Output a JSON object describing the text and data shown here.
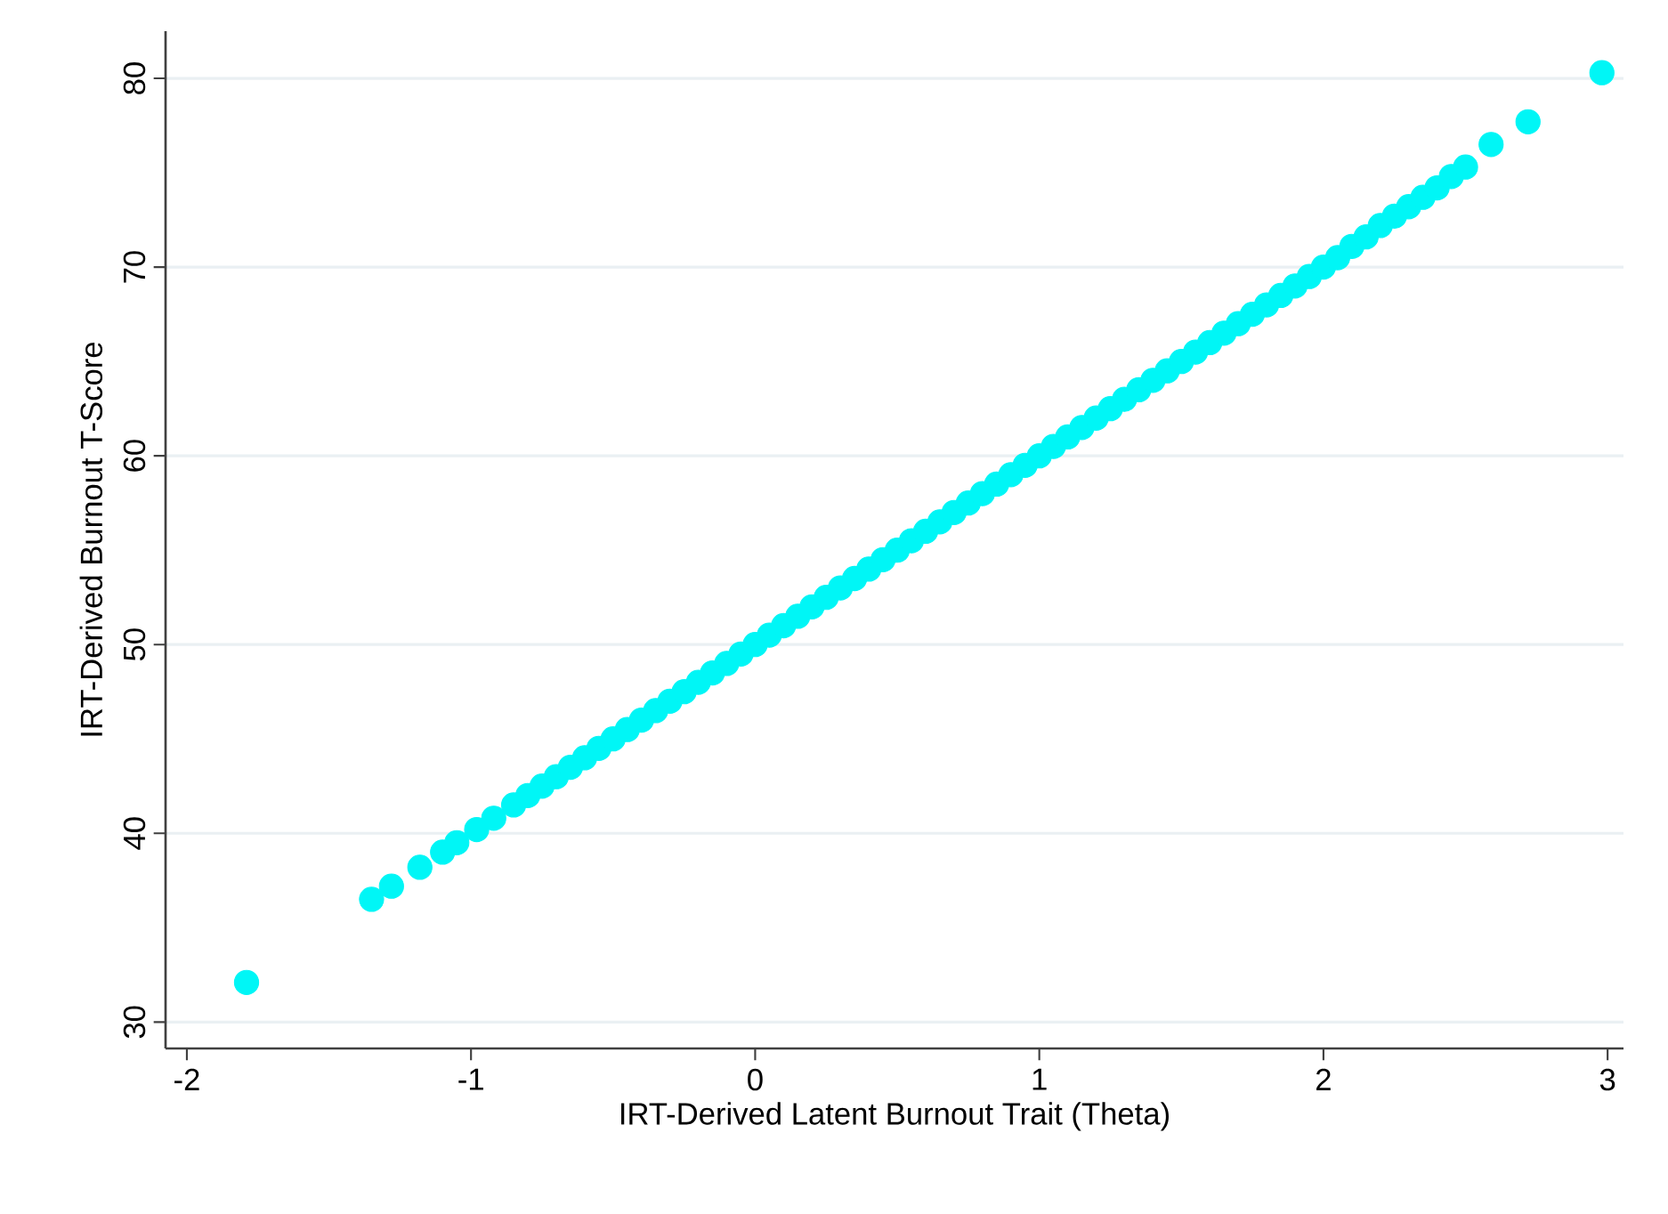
{
  "chart_data": {
    "type": "scatter",
    "xlabel": "IRT-Derived Latent Burnout Trait (Theta)",
    "ylabel": "IRT-Derived Burnout T-Score",
    "xlim": [
      -2.075,
      3.056
    ],
    "ylim": [
      28.6,
      82.5
    ],
    "xticks": [
      -2,
      -1,
      0,
      1,
      2,
      3
    ],
    "yticks": [
      30,
      40,
      50,
      60,
      70,
      80
    ],
    "grid": "y",
    "marker": "circle",
    "series": [
      {
        "color": "#00f6f6",
        "x": [
          -1.79,
          -1.35,
          -1.28,
          -1.18,
          -1.1,
          -1.05,
          -0.98,
          -0.92,
          -0.85,
          -0.8,
          -0.75,
          -0.7,
          -0.65,
          -0.6,
          -0.55,
          -0.5,
          -0.45,
          -0.4,
          -0.35,
          -0.3,
          -0.25,
          -0.2,
          -0.15,
          -0.1,
          -0.05,
          0,
          0.05,
          0.1,
          0.15,
          0.2,
          0.25,
          0.3,
          0.35,
          0.4,
          0.45,
          0.5,
          0.55,
          0.6,
          0.65,
          0.7,
          0.75,
          0.8,
          0.85,
          0.9,
          0.95,
          1,
          1.05,
          1.1,
          1.15,
          1.2,
          1.25,
          1.3,
          1.35,
          1.4,
          1.45,
          1.5,
          1.55,
          1.6,
          1.65,
          1.7,
          1.75,
          1.8,
          1.85,
          1.9,
          1.95,
          2,
          2.05,
          2.1,
          2.15,
          2.2,
          2.25,
          2.3,
          2.35,
          2.4,
          2.45,
          2.5,
          2.59,
          2.72,
          2.98
        ],
        "values": [
          32.1,
          36.5,
          37.2,
          38.2,
          39,
          39.5,
          40.2,
          40.8,
          41.5,
          42,
          42.5,
          43,
          43.5,
          44,
          44.5,
          45,
          45.5,
          46,
          46.5,
          47,
          47.5,
          48,
          48.5,
          49,
          49.5,
          50,
          50.5,
          51,
          51.5,
          52,
          52.5,
          53,
          53.5,
          54,
          54.5,
          55,
          55.5,
          56,
          56.5,
          57,
          57.5,
          58,
          58.5,
          59,
          59.5,
          60,
          60.5,
          61,
          61.5,
          62,
          62.5,
          63,
          63.5,
          64,
          64.5,
          65,
          65.5,
          66,
          66.5,
          67,
          67.5,
          68,
          68.5,
          69,
          69.5,
          70,
          70.5,
          71.1,
          71.6,
          72.2,
          72.7,
          73.2,
          73.7,
          74.2,
          74.8,
          75.3,
          76.5,
          77.7,
          80.3
        ]
      }
    ]
  }
}
